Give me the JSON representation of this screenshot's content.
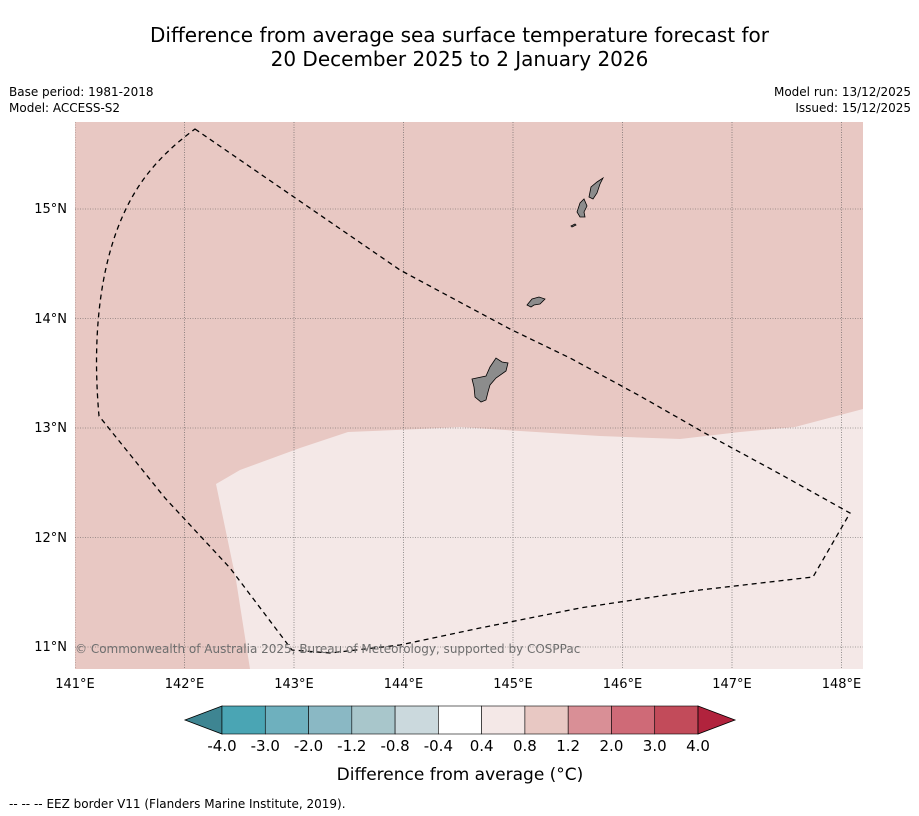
{
  "title": {
    "line1": "Difference from average sea surface temperature forecast for",
    "line2": "20 December 2025 to 2 January 2026"
  },
  "meta": {
    "base_period": "Base period: 1981-2018",
    "model": "Model: ACCESS-S2",
    "model_run": "Model run: 13/12/2025",
    "issued": "Issued: 15/12/2025"
  },
  "map": {
    "lon_ticks": [
      "141°E",
      "142°E",
      "143°E",
      "144°E",
      "145°E",
      "146°E",
      "147°E",
      "148°E"
    ],
    "lat_ticks": [
      "15°N",
      "14°N",
      "13°N",
      "12°N",
      "11°N"
    ],
    "copyright": "© Commonwealth of Australia 2025, Bureau of Meteorology, supported by COSPPac",
    "colors": {
      "range_0_4_0_8": "#f4e8e7",
      "range_0_8_1_2": "#e8c8c3",
      "land": "#8c8c8c"
    }
  },
  "colorbar": {
    "ticks": [
      "-4.0",
      "-3.0",
      "-2.0",
      "-1.2",
      "-0.8",
      "-0.4",
      "0.4",
      "0.8",
      "1.2",
      "2.0",
      "3.0",
      "4.0"
    ],
    "colors": [
      "#4aa5b4",
      "#6eb0be",
      "#8ab8c4",
      "#a8c6cb",
      "#cbd9dd",
      "#ffffff",
      "#f4e8e7",
      "#e8c8c3",
      "#d98f96",
      "#cf6a77",
      "#c24b5a"
    ],
    "under_color": "#3e8592",
    "over_color": "#b1233d",
    "label": "Difference from average (°C)"
  },
  "legend": {
    "eez_marker": "-- -- --",
    "eez_text": "EEZ border V11 (Flanders Marine Institute, 2019)."
  }
}
